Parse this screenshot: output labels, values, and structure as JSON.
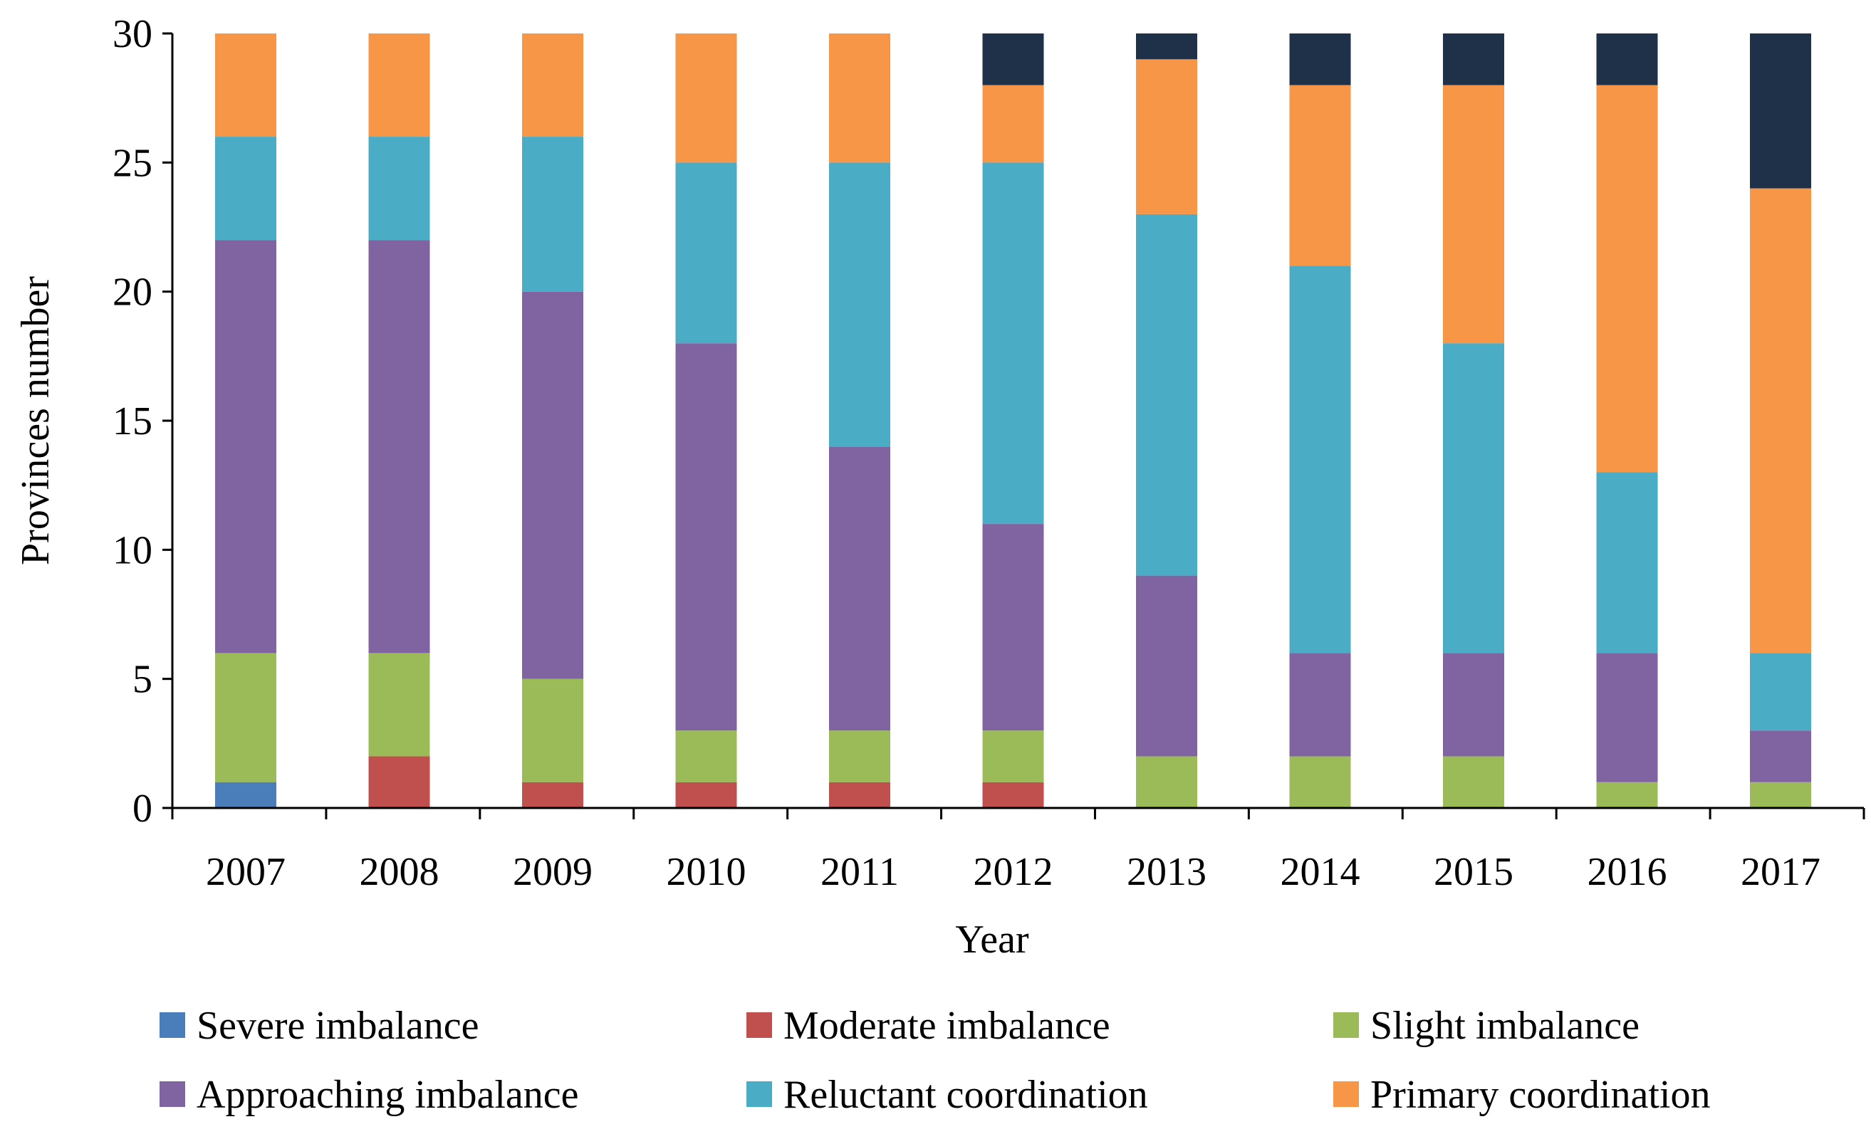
{
  "chart_data": {
    "type": "bar",
    "stacked": true,
    "title": "",
    "xlabel": "Year",
    "ylabel": "Provinces number",
    "ylim": [
      0,
      30
    ],
    "yticks": [
      0,
      5,
      10,
      15,
      20,
      25,
      30
    ],
    "grid": false,
    "legend_position": "bottom",
    "categories": [
      "2007",
      "2008",
      "2009",
      "2010",
      "2011",
      "2012",
      "2013",
      "2014",
      "2015",
      "2016",
      "2017"
    ],
    "series": [
      {
        "name": "Severe imbalance",
        "color": "#4a7ebb",
        "values": [
          1,
          0,
          0,
          0,
          0,
          0,
          0,
          0,
          0,
          0,
          0
        ]
      },
      {
        "name": "Moderate imbalance",
        "color": "#c0504d",
        "values": [
          0,
          2,
          1,
          1,
          1,
          1,
          0,
          0,
          0,
          0,
          0
        ]
      },
      {
        "name": "Slight imbalance",
        "color": "#9bbb59",
        "values": [
          5,
          4,
          4,
          2,
          2,
          2,
          2,
          2,
          2,
          1,
          1
        ]
      },
      {
        "name": "Approaching imbalance",
        "color": "#8064a2",
        "values": [
          16,
          16,
          15,
          15,
          11,
          8,
          7,
          4,
          4,
          5,
          2
        ]
      },
      {
        "name": "Reluctant coordination",
        "color": "#4bacc6",
        "values": [
          4,
          4,
          6,
          7,
          11,
          14,
          14,
          15,
          12,
          7,
          3
        ]
      },
      {
        "name": "Primary coordination",
        "color": "#f79646",
        "values": [
          4,
          4,
          4,
          5,
          5,
          3,
          6,
          7,
          10,
          15,
          18
        ]
      },
      {
        "name": "",
        "color": "#1f3049",
        "values": [
          0,
          0,
          0,
          0,
          0,
          2,
          1,
          2,
          2,
          2,
          6
        ]
      }
    ]
  }
}
